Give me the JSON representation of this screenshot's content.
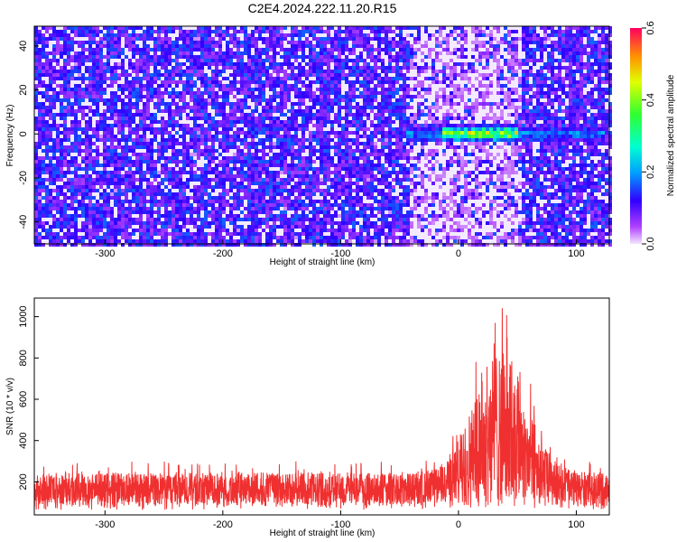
{
  "title": "C2E4.2024.222.11.20.R15",
  "colors": {
    "snr_line": "#f03030",
    "background": "#ffffff"
  },
  "chart_data": [
    {
      "type": "heatmap",
      "xlabel": "Height of straight line (km)",
      "ylabel": "Frequency (Hz)",
      "xlim": [
        -360,
        128
      ],
      "ylim": [
        -50,
        49
      ],
      "xticks": [
        -300,
        -200,
        -100,
        0,
        100
      ],
      "yticks": [
        -40,
        -20,
        0,
        20,
        40
      ],
      "colorbar": {
        "label": "Normalized spectral amplitude",
        "range": [
          0.0,
          0.6
        ],
        "ticks": [
          0.0,
          0.2,
          0.4,
          0.6
        ]
      },
      "features": [
        {
          "description_free": true,
          "x_range": [
            -45,
            125
          ],
          "y_center": 0,
          "peak_value": 0.55,
          "peak_x_range": [
            -15,
            50
          ]
        }
      ],
      "background_level": [
        0.05,
        0.15
      ],
      "quiet_region_x": [
        -40,
        55
      ]
    },
    {
      "type": "line",
      "xlabel": "Height of straight line (km)",
      "ylabel": "SNR (10 * v/v)",
      "xlim": [
        -360,
        128
      ],
      "ylim": [
        40,
        1090
      ],
      "xticks": [
        -300,
        -200,
        -100,
        0,
        100
      ],
      "yticks": [
        200,
        400,
        600,
        800,
        1000
      ],
      "baseline_range": [
        100,
        400
      ],
      "peak": {
        "x": 35,
        "y": 1080
      },
      "elevated_region_x": [
        0,
        65
      ]
    }
  ]
}
